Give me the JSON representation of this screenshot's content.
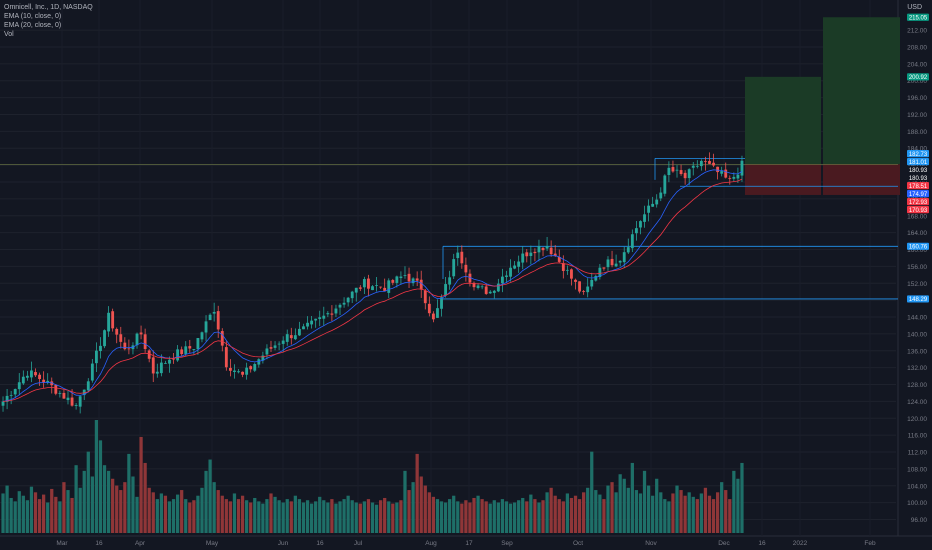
{
  "legend": {
    "title": "Omnicell, Inc., 1D, NASDAQ",
    "ema10": "EMA (10, close, 0)",
    "ema20": "EMA (20, close, 0)",
    "vol": "Vol"
  },
  "currency": "USD",
  "colors": {
    "background": "#131722",
    "up": "#26a69a",
    "down": "#ef5350",
    "ema10": "#2962ff",
    "ema20": "#f23645",
    "level_line": "#2196f3",
    "profit_zone": "#1b3b26",
    "loss_zone": "#4a1a20",
    "axis_text": "#787b86"
  },
  "chart_data": {
    "type": "candlestick",
    "title": "Omnicell, Inc., 1D, NASDAQ",
    "y_axis_ticks": [
      96,
      100,
      104,
      108,
      112,
      116,
      120,
      124,
      128,
      132,
      136,
      140,
      144,
      148,
      152,
      156,
      160,
      164,
      168,
      172,
      176,
      180,
      184,
      188,
      192,
      196,
      200,
      204,
      208,
      212
    ],
    "x_axis_ticks": [
      "Mar",
      "16",
      "Apr",
      "May",
      "Jun",
      "16",
      "Jul",
      "Aug",
      "17",
      "Sep",
      "Oct",
      "Nov",
      "Dec",
      "16",
      "2022",
      "Feb"
    ],
    "ylim": [
      94,
      217
    ],
    "price_markers": [
      {
        "label": "215.05",
        "value": 215.05,
        "color": "#089981"
      },
      {
        "label": "200.92",
        "value": 200.92,
        "color": "#089981"
      },
      {
        "label": "182.73",
        "value": 182.73,
        "color": "#2196f3"
      },
      {
        "label": "181.01",
        "value": 181.01,
        "color": "#2196f3"
      },
      {
        "label": "180.93",
        "value": 180.93,
        "color": "#131722"
      },
      {
        "label": "180.93",
        "value": 180.93,
        "color": "#131722"
      },
      {
        "label": "178.51",
        "value": 178.51,
        "color": "#f23645"
      },
      {
        "label": "174.97",
        "value": 174.97,
        "color": "#2962ff"
      },
      {
        "label": "172.93",
        "value": 172.93,
        "color": "#f23645"
      },
      {
        "label": "170.93",
        "value": 170.93,
        "color": "#f23645"
      },
      {
        "label": "160.76",
        "value": 160.76,
        "color": "#2196f3"
      },
      {
        "label": "148.29",
        "value": 148.29,
        "color": "#2196f3"
      }
    ],
    "horizontal_levels": [
      160.76,
      148.29
    ],
    "trade_zones": [
      {
        "entry": 180.2,
        "target": 200.92,
        "stop": 172.93
      },
      {
        "entry": 180.2,
        "target": 215.05,
        "stop": 172.93
      }
    ],
    "price_path": [
      {
        "t": 0,
        "p": 124
      },
      {
        "t": 6,
        "p": 131
      },
      {
        "t": 10,
        "p": 129
      },
      {
        "t": 14,
        "p": 126
      },
      {
        "t": 18,
        "p": 123
      },
      {
        "t": 22,
        "p": 132
      },
      {
        "t": 26,
        "p": 144
      },
      {
        "t": 30,
        "p": 136
      },
      {
        "t": 34,
        "p": 140
      },
      {
        "t": 37,
        "p": 131
      },
      {
        "t": 42,
        "p": 135
      },
      {
        "t": 47,
        "p": 137
      },
      {
        "t": 52,
        "p": 146
      },
      {
        "t": 55,
        "p": 133
      },
      {
        "t": 59,
        "p": 130
      },
      {
        "t": 64,
        "p": 135
      },
      {
        "t": 69,
        "p": 139
      },
      {
        "t": 74,
        "p": 141
      },
      {
        "t": 79,
        "p": 144
      },
      {
        "t": 84,
        "p": 148
      },
      {
        "t": 89,
        "p": 152
      },
      {
        "t": 94,
        "p": 151
      },
      {
        "t": 99,
        "p": 154
      },
      {
        "t": 103,
        "p": 151
      },
      {
        "t": 106,
        "p": 143
      },
      {
        "t": 109,
        "p": 151
      },
      {
        "t": 112,
        "p": 160
      },
      {
        "t": 116,
        "p": 151
      },
      {
        "t": 120,
        "p": 150
      },
      {
        "t": 125,
        "p": 156
      },
      {
        "t": 130,
        "p": 160
      },
      {
        "t": 134,
        "p": 161
      },
      {
        "t": 138,
        "p": 156
      },
      {
        "t": 143,
        "p": 149
      },
      {
        "t": 147,
        "p": 156
      },
      {
        "t": 152,
        "p": 158
      },
      {
        "t": 157,
        "p": 167
      },
      {
        "t": 161,
        "p": 172
      },
      {
        "t": 164,
        "p": 179
      },
      {
        "t": 168,
        "p": 177
      },
      {
        "t": 172,
        "p": 181
      },
      {
        "t": 175,
        "p": 179
      },
      {
        "t": 179,
        "p": 176
      },
      {
        "t": 182,
        "p": 180
      }
    ],
    "candle_count": 183,
    "volume_ratio": [
      0.35,
      0.42,
      0.31,
      0.28,
      0.37,
      0.33,
      0.29,
      0.41,
      0.36,
      0.3,
      0.34,
      0.27,
      0.39,
      0.32,
      0.28,
      0.45,
      0.38,
      0.31,
      0.6,
      0.4,
      0.55,
      0.72,
      0.5,
      1.0,
      0.82,
      0.6,
      0.55,
      0.48,
      0.42,
      0.38,
      0.45,
      0.7,
      0.5,
      0.32,
      0.85,
      0.62,
      0.4,
      0.36,
      0.3,
      0.35,
      0.33,
      0.28,
      0.3,
      0.34,
      0.38,
      0.3,
      0.27,
      0.29,
      0.33,
      0.4,
      0.55,
      0.65,
      0.45,
      0.38,
      0.33,
      0.3,
      0.28,
      0.35,
      0.3,
      0.33,
      0.29,
      0.27,
      0.31,
      0.28,
      0.26,
      0.3,
      0.35,
      0.32,
      0.29,
      0.27,
      0.3,
      0.28,
      0.33,
      0.3,
      0.27,
      0.29,
      0.26,
      0.28,
      0.32,
      0.29,
      0.27,
      0.3,
      0.26,
      0.28,
      0.3,
      0.33,
      0.29,
      0.27,
      0.26,
      0.28,
      0.3,
      0.27,
      0.25,
      0.29,
      0.31,
      0.28,
      0.26,
      0.27,
      0.29,
      0.55,
      0.38,
      0.45,
      0.7,
      0.5,
      0.42,
      0.36,
      0.32,
      0.3,
      0.28,
      0.27,
      0.3,
      0.33,
      0.28,
      0.26,
      0.29,
      0.27,
      0.31,
      0.33,
      0.3,
      0.28,
      0.26,
      0.29,
      0.27,
      0.3,
      0.28,
      0.26,
      0.27,
      0.29,
      0.31,
      0.28,
      0.34,
      0.3,
      0.27,
      0.29,
      0.36,
      0.4,
      0.33,
      0.3,
      0.28,
      0.35,
      0.31,
      0.33,
      0.3,
      0.36,
      0.4,
      0.72,
      0.38,
      0.34,
      0.3,
      0.42,
      0.45,
      0.36,
      0.52,
      0.48,
      0.4,
      0.62,
      0.38,
      0.35,
      0.55,
      0.42,
      0.33,
      0.48,
      0.36,
      0.3,
      0.28,
      0.35,
      0.42,
      0.38,
      0.33,
      0.36,
      0.32,
      0.3,
      0.35,
      0.4,
      0.33,
      0.3,
      0.36,
      0.45,
      0.38,
      0.3,
      0.55,
      0.48,
      0.62
    ]
  }
}
